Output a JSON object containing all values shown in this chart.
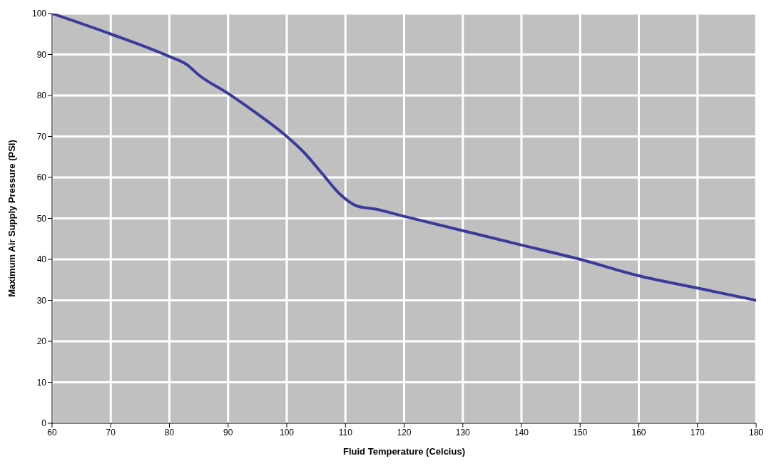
{
  "chart_data": {
    "type": "line",
    "xlabel": "Fluid Temperature (Celcius)",
    "ylabel": "Maximum Air Supply Pressure (PSI)",
    "x": [
      60,
      70,
      80,
      83,
      85,
      90,
      95,
      100,
      103,
      106,
      109,
      112,
      115,
      120,
      130,
      140,
      150,
      160,
      170,
      180
    ],
    "series": [
      {
        "color": "#3b3b9b",
        "values": [
          100,
          95,
          89.5,
          87.5,
          85,
          80.5,
          75.5,
          70,
          66,
          61,
          56,
          53,
          52.3,
          50.5,
          47,
          43.5,
          40,
          36,
          33,
          30
        ]
      }
    ],
    "xlim": [
      60,
      180
    ],
    "xticks": [
      60,
      70,
      80,
      90,
      100,
      110,
      120,
      130,
      140,
      150,
      160,
      170,
      180
    ],
    "ylim": [
      0,
      100
    ],
    "yticks": [
      0,
      10,
      20,
      30,
      40,
      50,
      60,
      70,
      80,
      90,
      100
    ],
    "grid": true,
    "legend": false,
    "marker": "none",
    "line_style": "solid"
  }
}
